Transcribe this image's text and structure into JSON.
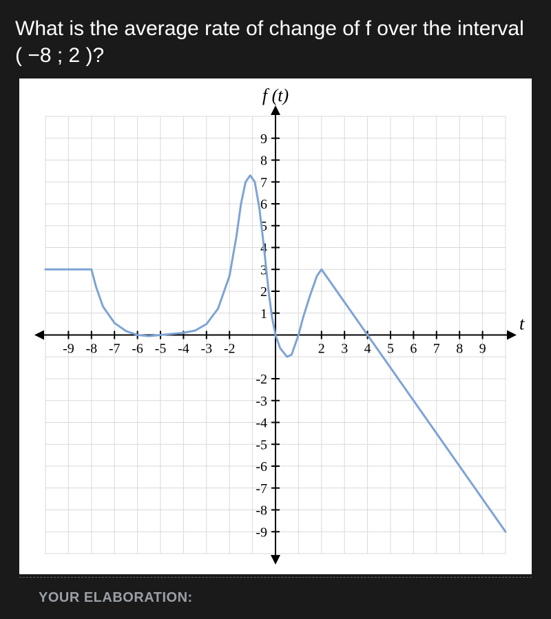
{
  "question_text": "What is the average rate of change of f over the interval ( −8 ; 2 )?",
  "elaboration_label": "YOUR ELABORATION:",
  "chart": {
    "type": "line",
    "title_top": "f (t)",
    "x_axis_label": "t",
    "xlim": [
      -10,
      10
    ],
    "ylim": [
      -10,
      10
    ],
    "x_ticks": [
      -9,
      -8,
      -7,
      -6,
      -5,
      -4,
      -3,
      -2,
      2,
      3,
      4,
      5,
      6,
      7,
      8,
      9
    ],
    "y_ticks_pos": [
      1,
      2,
      3,
      4,
      5,
      6,
      7,
      8,
      9
    ],
    "y_ticks_neg": [
      -2,
      -3,
      -4,
      -5,
      -6,
      -7,
      -8,
      -9
    ],
    "background_color": "#ffffff",
    "grid_color": "#d9d9d9",
    "axis_color": "#000000",
    "curve_color": "#7da3d6",
    "tick_fontsize": 20,
    "label_fontsize": 26,
    "curve_points": [
      [
        -10,
        3
      ],
      [
        -8,
        3
      ],
      [
        -7.8,
        2.2
      ],
      [
        -7.5,
        1.3
      ],
      [
        -7,
        0.55
      ],
      [
        -6.5,
        0.18
      ],
      [
        -6,
        0
      ],
      [
        -5.5,
        -0.05
      ],
      [
        -5,
        0
      ],
      [
        -4.5,
        0.05
      ],
      [
        -4,
        0.1
      ],
      [
        -3.5,
        0.2
      ],
      [
        -3,
        0.5
      ],
      [
        -2.5,
        1.2
      ],
      [
        -2,
        2.7
      ],
      [
        -1.7,
        4.5
      ],
      [
        -1.5,
        6.0
      ],
      [
        -1.3,
        7.0
      ],
      [
        -1.1,
        7.3
      ],
      [
        -0.9,
        7.0
      ],
      [
        -0.7,
        5.8
      ],
      [
        -0.5,
        4.0
      ],
      [
        -0.3,
        2.0
      ],
      [
        -0.15,
        0.8
      ],
      [
        0,
        0
      ],
      [
        0.2,
        -0.6
      ],
      [
        0.5,
        -1.0
      ],
      [
        0.7,
        -0.9
      ],
      [
        0.9,
        -0.3
      ],
      [
        1.0,
        0
      ],
      [
        1.2,
        0.8
      ],
      [
        1.5,
        1.8
      ],
      [
        1.8,
        2.7
      ],
      [
        2,
        3
      ],
      [
        2.2,
        2.7
      ],
      [
        10,
        -9
      ]
    ]
  }
}
